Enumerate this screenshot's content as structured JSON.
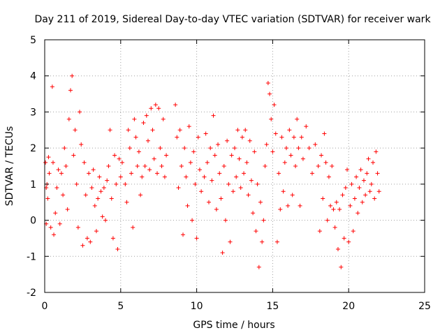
{
  "chart_data": {
    "type": "scatter",
    "title": "Day 211 of 2019, Sidereal Day-to-day VTEC variation (SDTVAR) for receiver wark",
    "xlabel": "GPS time / hours",
    "ylabel": "SDTVAR / TECUs",
    "xlim": [
      0,
      25
    ],
    "ylim": [
      -2,
      5
    ],
    "xticks": [
      "0",
      "5",
      "10",
      "15",
      "20",
      "25"
    ],
    "yticks": [
      "-2",
      "-1",
      "0",
      "1",
      "2",
      "3",
      "4",
      "5"
    ],
    "grid": true,
    "marker": "+",
    "series": [
      {
        "name": "SDTVAR",
        "color": "#ff0000",
        "points": [
          [
            0.05,
            1.6
          ],
          [
            0.1,
            0.9
          ],
          [
            0.1,
            -0.1
          ],
          [
            0.15,
            1.0
          ],
          [
            0.2,
            0.6
          ],
          [
            0.25,
            1.75
          ],
          [
            0.3,
            1.3
          ],
          [
            0.4,
            -0.2
          ],
          [
            0.5,
            3.7
          ],
          [
            0.55,
            1.6
          ],
          [
            0.6,
            -0.4
          ],
          [
            0.7,
            0.2
          ],
          [
            0.8,
            0.9
          ],
          [
            0.9,
            1.4
          ],
          [
            1.0,
            -0.1
          ],
          [
            1.1,
            1.3
          ],
          [
            1.2,
            0.7
          ],
          [
            1.3,
            2.0
          ],
          [
            1.4,
            1.5
          ],
          [
            1.5,
            0.3
          ],
          [
            1.6,
            2.8
          ],
          [
            1.7,
            3.6
          ],
          [
            1.8,
            4.0
          ],
          [
            1.9,
            1.8
          ],
          [
            2.0,
            2.5
          ],
          [
            2.1,
            1.0
          ],
          [
            2.2,
            -0.2
          ],
          [
            2.3,
            3.0
          ],
          [
            2.4,
            2.1
          ],
          [
            2.5,
            -0.7
          ],
          [
            2.6,
            1.6
          ],
          [
            2.7,
            0.7
          ],
          [
            2.8,
            -0.5
          ],
          [
            2.9,
            1.3
          ],
          [
            3.0,
            -0.6
          ],
          [
            3.1,
            0.9
          ],
          [
            3.2,
            1.4
          ],
          [
            3.3,
            0.4
          ],
          [
            3.4,
            -0.3
          ],
          [
            3.5,
            0.6
          ],
          [
            3.6,
            1.2
          ],
          [
            3.7,
            0.8
          ],
          [
            3.8,
            0.1
          ],
          [
            3.9,
            0.9
          ],
          [
            4.0,
            0.0
          ],
          [
            4.1,
            1.1
          ],
          [
            4.2,
            1.5
          ],
          [
            4.3,
            2.5
          ],
          [
            4.4,
            0.6
          ],
          [
            4.5,
            -0.5
          ],
          [
            4.6,
            1.8
          ],
          [
            4.7,
            1.0
          ],
          [
            4.8,
            -0.8
          ],
          [
            4.9,
            1.7
          ],
          [
            5.0,
            1.2
          ],
          [
            5.1,
            1.6
          ],
          [
            5.3,
            1.0
          ],
          [
            5.4,
            0.5
          ],
          [
            5.5,
            2.5
          ],
          [
            5.6,
            2.0
          ],
          [
            5.7,
            1.3
          ],
          [
            5.8,
            -0.2
          ],
          [
            5.9,
            2.8
          ],
          [
            6.0,
            2.3
          ],
          [
            6.1,
            1.5
          ],
          [
            6.2,
            1.9
          ],
          [
            6.3,
            0.7
          ],
          [
            6.4,
            1.2
          ],
          [
            6.5,
            2.7
          ],
          [
            6.6,
            1.5
          ],
          [
            6.7,
            2.9
          ],
          [
            6.8,
            2.2
          ],
          [
            6.9,
            1.4
          ],
          [
            7.0,
            3.1
          ],
          [
            7.1,
            2.5
          ],
          [
            7.2,
            1.7
          ],
          [
            7.3,
            3.2
          ],
          [
            7.4,
            1.3
          ],
          [
            7.5,
            3.1
          ],
          [
            7.6,
            2.0
          ],
          [
            7.7,
            1.5
          ],
          [
            7.8,
            2.8
          ],
          [
            7.9,
            1.2
          ],
          [
            8.0,
            1.8
          ],
          [
            8.6,
            3.2
          ],
          [
            8.7,
            2.3
          ],
          [
            8.8,
            0.9
          ],
          [
            8.9,
            2.5
          ],
          [
            9.0,
            1.5
          ],
          [
            9.1,
            -0.4
          ],
          [
            9.2,
            2.0
          ],
          [
            9.3,
            1.2
          ],
          [
            9.4,
            0.4
          ],
          [
            9.5,
            2.6
          ],
          [
            9.6,
            1.6
          ],
          [
            9.7,
            0.0
          ],
          [
            9.8,
            1.9
          ],
          [
            9.9,
            1.0
          ],
          [
            10.0,
            -0.5
          ],
          [
            10.1,
            2.3
          ],
          [
            10.2,
            1.4
          ],
          [
            10.3,
            0.8
          ],
          [
            10.5,
            1.2
          ],
          [
            10.6,
            2.4
          ],
          [
            10.7,
            1.6
          ],
          [
            10.8,
            0.5
          ],
          [
            10.9,
            2.0
          ],
          [
            11.0,
            1.1
          ],
          [
            11.1,
            2.9
          ],
          [
            11.2,
            1.8
          ],
          [
            11.3,
            0.3
          ],
          [
            11.4,
            2.1
          ],
          [
            11.5,
            1.3
          ],
          [
            11.6,
            0.6
          ],
          [
            11.7,
            -0.9
          ],
          [
            11.8,
            1.5
          ],
          [
            11.9,
            0.0
          ],
          [
            12.0,
            2.2
          ],
          [
            12.1,
            1.0
          ],
          [
            12.2,
            -0.6
          ],
          [
            12.3,
            1.8
          ],
          [
            12.4,
            0.8
          ],
          [
            12.5,
            2.0
          ],
          [
            12.6,
            1.2
          ],
          [
            12.7,
            2.5
          ],
          [
            12.8,
            1.7
          ],
          [
            12.9,
            0.9
          ],
          [
            13.0,
            2.3
          ],
          [
            13.1,
            1.3
          ],
          [
            13.2,
            2.5
          ],
          [
            13.3,
            1.6
          ],
          [
            13.4,
            0.7
          ],
          [
            13.5,
            2.2
          ],
          [
            13.6,
            1.1
          ],
          [
            13.7,
            0.2
          ],
          [
            13.8,
            1.9
          ],
          [
            13.9,
            -0.3
          ],
          [
            14.0,
            1.0
          ],
          [
            14.1,
            -1.3
          ],
          [
            14.2,
            0.5
          ],
          [
            14.3,
            -0.6
          ],
          [
            14.4,
            0.0
          ],
          [
            14.5,
            1.5
          ],
          [
            14.6,
            2.1
          ],
          [
            14.7,
            3.8
          ],
          [
            14.8,
            3.5
          ],
          [
            14.9,
            2.8
          ],
          [
            15.0,
            1.9
          ],
          [
            15.1,
            3.2
          ],
          [
            15.2,
            2.4
          ],
          [
            15.3,
            -0.6
          ],
          [
            15.4,
            1.3
          ],
          [
            15.5,
            0.3
          ],
          [
            15.6,
            2.3
          ],
          [
            15.7,
            0.8
          ],
          [
            15.8,
            1.6
          ],
          [
            15.9,
            2.0
          ],
          [
            16.0,
            0.4
          ],
          [
            16.1,
            2.5
          ],
          [
            16.2,
            1.8
          ],
          [
            16.3,
            0.7
          ],
          [
            16.4,
            2.3
          ],
          [
            16.5,
            1.5
          ],
          [
            16.6,
            2.8
          ],
          [
            16.7,
            2.0
          ],
          [
            16.8,
            0.4
          ],
          [
            16.9,
            2.3
          ],
          [
            17.0,
            1.7
          ],
          [
            17.2,
            2.6
          ],
          [
            17.4,
            2.0
          ],
          [
            17.6,
            1.3
          ],
          [
            17.8,
            2.1
          ],
          [
            18.0,
            1.5
          ],
          [
            18.1,
            -0.3
          ],
          [
            18.2,
            1.8
          ],
          [
            18.3,
            0.6
          ],
          [
            18.4,
            2.4
          ],
          [
            18.5,
            1.6
          ],
          [
            18.6,
            0.0
          ],
          [
            18.7,
            1.2
          ],
          [
            18.8,
            0.4
          ],
          [
            18.9,
            1.5
          ],
          [
            19.0,
            0.3
          ],
          [
            19.1,
            -0.2
          ],
          [
            19.2,
            0.5
          ],
          [
            19.3,
            -0.8
          ],
          [
            19.4,
            0.3
          ],
          [
            19.5,
            -1.3
          ],
          [
            19.6,
            0.7
          ],
          [
            19.7,
            -0.5
          ],
          [
            19.8,
            0.9
          ],
          [
            19.9,
            1.4
          ],
          [
            20.0,
            -0.6
          ],
          [
            20.1,
            0.4
          ],
          [
            20.2,
            1.0
          ],
          [
            20.3,
            -0.3
          ],
          [
            20.4,
            0.6
          ],
          [
            20.5,
            1.2
          ],
          [
            20.6,
            0.2
          ],
          [
            20.7,
            0.9
          ],
          [
            20.8,
            1.4
          ],
          [
            20.9,
            0.5
          ],
          [
            21.0,
            1.1
          ],
          [
            21.1,
            0.7
          ],
          [
            21.2,
            1.3
          ],
          [
            21.3,
            1.7
          ],
          [
            21.4,
            0.8
          ],
          [
            21.5,
            1.0
          ],
          [
            21.6,
            1.6
          ],
          [
            21.7,
            0.6
          ],
          [
            21.8,
            1.9
          ],
          [
            21.9,
            1.3
          ],
          [
            22.0,
            0.8
          ]
        ]
      }
    ]
  }
}
